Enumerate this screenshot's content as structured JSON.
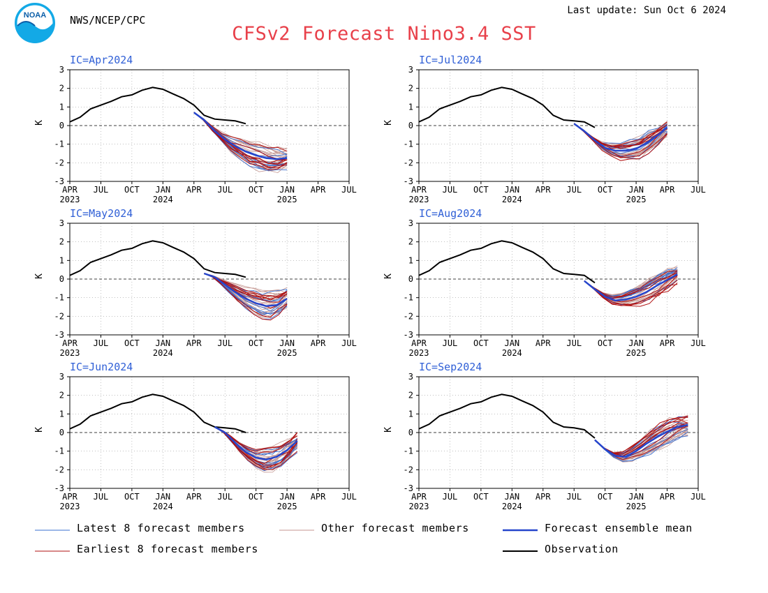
{
  "header": {
    "agency": "NWS/NCEP/CPC",
    "last_update": "Last update: Sun Oct 6 2024",
    "title": "CFSv2 Forecast Nino3.4 SST",
    "logo_text": "NOAA"
  },
  "colors": {
    "title": "#e8404a",
    "panel_title": "#2f5fd6",
    "observation": "#000000",
    "ensemble_mean": "#2545cc",
    "latest_members": "#3a6fd0",
    "earliest_members": "#b01010",
    "other_members": "#c49690",
    "logo_blue": "#13a9e6"
  },
  "legend": [
    {
      "label": "Latest 8 forecast members",
      "kind": "latest"
    },
    {
      "label": "Other forecast members",
      "kind": "other"
    },
    {
      "label": "Forecast ensemble mean",
      "kind": "mean"
    },
    {
      "label": "Earliest 8 forecast members",
      "kind": "earliest"
    },
    {
      "label": "Observation",
      "kind": "observation"
    }
  ],
  "chart_data": [
    {
      "type": "line",
      "title": "IC=Apr2024",
      "ylabel": "K",
      "ylim": [
        -3,
        3
      ],
      "x_ticks": [
        "APR",
        "JUL",
        "OCT",
        "JAN",
        "APR",
        "JUL",
        "OCT",
        "JAN",
        "APR",
        "JUL"
      ],
      "x_year_labels": [
        {
          "at": 0,
          "label": "2023"
        },
        {
          "at": 3,
          "label": "2024"
        },
        {
          "at": 7,
          "label": "2025"
        }
      ],
      "y_ticks": [
        3,
        2,
        1,
        0,
        -1,
        -2,
        -3
      ],
      "observation_x": [
        0,
        0.33,
        0.67,
        1,
        1.33,
        1.67,
        2,
        2.33,
        2.67,
        3,
        3.33,
        3.67,
        4,
        4.33,
        4.67,
        5,
        5.33,
        5.67
      ],
      "observation_y": [
        0.2,
        0.45,
        0.9,
        1.1,
        1.3,
        1.55,
        1.65,
        1.9,
        2.05,
        1.95,
        1.7,
        1.45,
        1.1,
        0.55,
        0.35,
        0.3,
        0.25,
        0.1
      ],
      "mean_x": [
        4,
        4.33,
        4.67,
        5,
        5.33,
        5.67,
        6,
        6.33,
        6.67,
        7
      ],
      "mean_y": [
        0.7,
        0.3,
        -0.3,
        -0.75,
        -1.1,
        -1.4,
        -1.6,
        -1.75,
        -1.8,
        -1.75
      ],
      "members_latest": 8,
      "members_earliest": 8,
      "members_other": 24,
      "ensemble_spread_k": 0.6
    },
    {
      "type": "line",
      "title": "IC=May2024",
      "ylabel": "K",
      "ylim": [
        -3,
        3
      ],
      "x_ticks": [
        "APR",
        "JUL",
        "OCT",
        "JAN",
        "APR",
        "JUL",
        "OCT",
        "JAN",
        "APR",
        "JUL"
      ],
      "x_year_labels": [
        {
          "at": 0,
          "label": "2023"
        },
        {
          "at": 3,
          "label": "2024"
        },
        {
          "at": 7,
          "label": "2025"
        }
      ],
      "y_ticks": [
        3,
        2,
        1,
        0,
        -1,
        -2,
        -3
      ],
      "observation_x": [
        0,
        0.33,
        0.67,
        1,
        1.33,
        1.67,
        2,
        2.33,
        2.67,
        3,
        3.33,
        3.67,
        4,
        4.33,
        4.67,
        5,
        5.33,
        5.67
      ],
      "observation_y": [
        0.2,
        0.45,
        0.9,
        1.1,
        1.3,
        1.55,
        1.65,
        1.9,
        2.05,
        1.95,
        1.7,
        1.45,
        1.1,
        0.55,
        0.35,
        0.3,
        0.25,
        0.1
      ],
      "mean_x": [
        4.33,
        4.67,
        5,
        5.33,
        5.67,
        6,
        6.33,
        6.67,
        7
      ],
      "mean_y": [
        0.3,
        0.1,
        -0.3,
        -0.7,
        -1.05,
        -1.3,
        -1.45,
        -1.4,
        -1.05
      ],
      "members_latest": 8,
      "members_earliest": 8,
      "members_other": 24,
      "ensemble_spread_k": 0.6
    },
    {
      "type": "line",
      "title": "IC=Jun2024",
      "ylabel": "K",
      "ylim": [
        -3,
        3
      ],
      "x_ticks": [
        "APR",
        "JUL",
        "OCT",
        "JAN",
        "APR",
        "JUL",
        "OCT",
        "JAN",
        "APR",
        "JUL"
      ],
      "x_year_labels": [
        {
          "at": 0,
          "label": "2023"
        },
        {
          "at": 3,
          "label": "2024"
        },
        {
          "at": 7,
          "label": "2025"
        }
      ],
      "y_ticks": [
        3,
        2,
        1,
        0,
        -1,
        -2,
        -3
      ],
      "observation_x": [
        0,
        0.33,
        0.67,
        1,
        1.33,
        1.67,
        2,
        2.33,
        2.67,
        3,
        3.33,
        3.67,
        4,
        4.33,
        4.67,
        5,
        5.33,
        5.67
      ],
      "observation_y": [
        0.2,
        0.45,
        0.9,
        1.1,
        1.3,
        1.55,
        1.65,
        1.9,
        2.05,
        1.95,
        1.7,
        1.45,
        1.1,
        0.55,
        0.3,
        0.25,
        0.2,
        0.0
      ],
      "mean_x": [
        4.67,
        5,
        5.33,
        5.67,
        6,
        6.33,
        6.67,
        7,
        7.33
      ],
      "mean_y": [
        0.3,
        0.0,
        -0.55,
        -1.05,
        -1.35,
        -1.45,
        -1.3,
        -0.95,
        -0.45
      ],
      "members_latest": 8,
      "members_earliest": 8,
      "members_other": 24,
      "ensemble_spread_k": 0.55
    },
    {
      "type": "line",
      "title": "IC=Jul2024",
      "ylabel": "K",
      "ylim": [
        -3,
        3
      ],
      "x_ticks": [
        "APR",
        "JUL",
        "OCT",
        "JAN",
        "APR",
        "JUL",
        "OCT",
        "JAN",
        "APR",
        "JUL"
      ],
      "x_year_labels": [
        {
          "at": 0,
          "label": "2023"
        },
        {
          "at": 3,
          "label": "2024"
        },
        {
          "at": 7,
          "label": "2025"
        }
      ],
      "y_ticks": [
        3,
        2,
        1,
        0,
        -1,
        -2,
        -3
      ],
      "observation_x": [
        0,
        0.33,
        0.67,
        1,
        1.33,
        1.67,
        2,
        2.33,
        2.67,
        3,
        3.33,
        3.67,
        4,
        4.33,
        4.67,
        5,
        5.33,
        5.67
      ],
      "observation_y": [
        0.2,
        0.45,
        0.9,
        1.1,
        1.3,
        1.55,
        1.65,
        1.9,
        2.05,
        1.95,
        1.7,
        1.45,
        1.1,
        0.55,
        0.3,
        0.25,
        0.2,
        -0.1
      ],
      "mean_x": [
        5,
        5.33,
        5.67,
        6,
        6.33,
        6.67,
        7,
        7.33,
        7.67,
        8
      ],
      "mean_y": [
        0.1,
        -0.3,
        -0.8,
        -1.2,
        -1.35,
        -1.35,
        -1.25,
        -0.95,
        -0.55,
        -0.1
      ],
      "members_latest": 8,
      "members_earliest": 8,
      "members_other": 24,
      "ensemble_spread_k": 0.5
    },
    {
      "type": "line",
      "title": "IC=Aug2024",
      "ylabel": "K",
      "ylim": [
        -3,
        3
      ],
      "x_ticks": [
        "APR",
        "JUL",
        "OCT",
        "JAN",
        "APR",
        "JUL",
        "OCT",
        "JAN",
        "APR",
        "JUL"
      ],
      "x_year_labels": [
        {
          "at": 0,
          "label": "2023"
        },
        {
          "at": 3,
          "label": "2024"
        },
        {
          "at": 7,
          "label": "2025"
        }
      ],
      "y_ticks": [
        3,
        2,
        1,
        0,
        -1,
        -2,
        -3
      ],
      "observation_x": [
        0,
        0.33,
        0.67,
        1,
        1.33,
        1.67,
        2,
        2.33,
        2.67,
        3,
        3.33,
        3.67,
        4,
        4.33,
        4.67,
        5,
        5.33,
        5.67
      ],
      "observation_y": [
        0.2,
        0.45,
        0.9,
        1.1,
        1.3,
        1.55,
        1.65,
        1.9,
        2.05,
        1.95,
        1.7,
        1.45,
        1.1,
        0.55,
        0.3,
        0.25,
        0.2,
        -0.2
      ],
      "mean_x": [
        5.33,
        5.67,
        6,
        6.33,
        6.67,
        7,
        7.33,
        7.67,
        8,
        8.33
      ],
      "mean_y": [
        -0.1,
        -0.55,
        -0.95,
        -1.15,
        -1.1,
        -0.95,
        -0.7,
        -0.35,
        -0.05,
        0.25
      ],
      "members_latest": 8,
      "members_earliest": 8,
      "members_other": 24,
      "ensemble_spread_k": 0.45
    },
    {
      "type": "line",
      "title": "IC=Sep2024",
      "ylabel": "K",
      "ylim": [
        -3,
        3
      ],
      "x_ticks": [
        "APR",
        "JUL",
        "OCT",
        "JAN",
        "APR",
        "JUL",
        "OCT",
        "JAN",
        "APR",
        "JUL"
      ],
      "x_year_labels": [
        {
          "at": 0,
          "label": "2023"
        },
        {
          "at": 3,
          "label": "2024"
        },
        {
          "at": 7,
          "label": "2025"
        }
      ],
      "y_ticks": [
        3,
        2,
        1,
        0,
        -1,
        -2,
        -3
      ],
      "observation_x": [
        0,
        0.33,
        0.67,
        1,
        1.33,
        1.67,
        2,
        2.33,
        2.67,
        3,
        3.33,
        3.67,
        4,
        4.33,
        4.67,
        5,
        5.33,
        5.67
      ],
      "observation_y": [
        0.2,
        0.45,
        0.9,
        1.1,
        1.3,
        1.55,
        1.65,
        1.9,
        2.05,
        1.95,
        1.7,
        1.45,
        1.1,
        0.55,
        0.3,
        0.25,
        0.15,
        -0.3
      ],
      "mean_x": [
        5.67,
        6,
        6.33,
        6.67,
        7,
        7.33,
        7.67,
        8,
        8.33,
        8.67
      ],
      "mean_y": [
        -0.4,
        -0.9,
        -1.25,
        -1.3,
        -1.0,
        -0.6,
        -0.25,
        0.05,
        0.3,
        0.4
      ],
      "members_latest": 8,
      "members_earliest": 8,
      "members_other": 24,
      "ensemble_spread_k": 0.55
    }
  ]
}
